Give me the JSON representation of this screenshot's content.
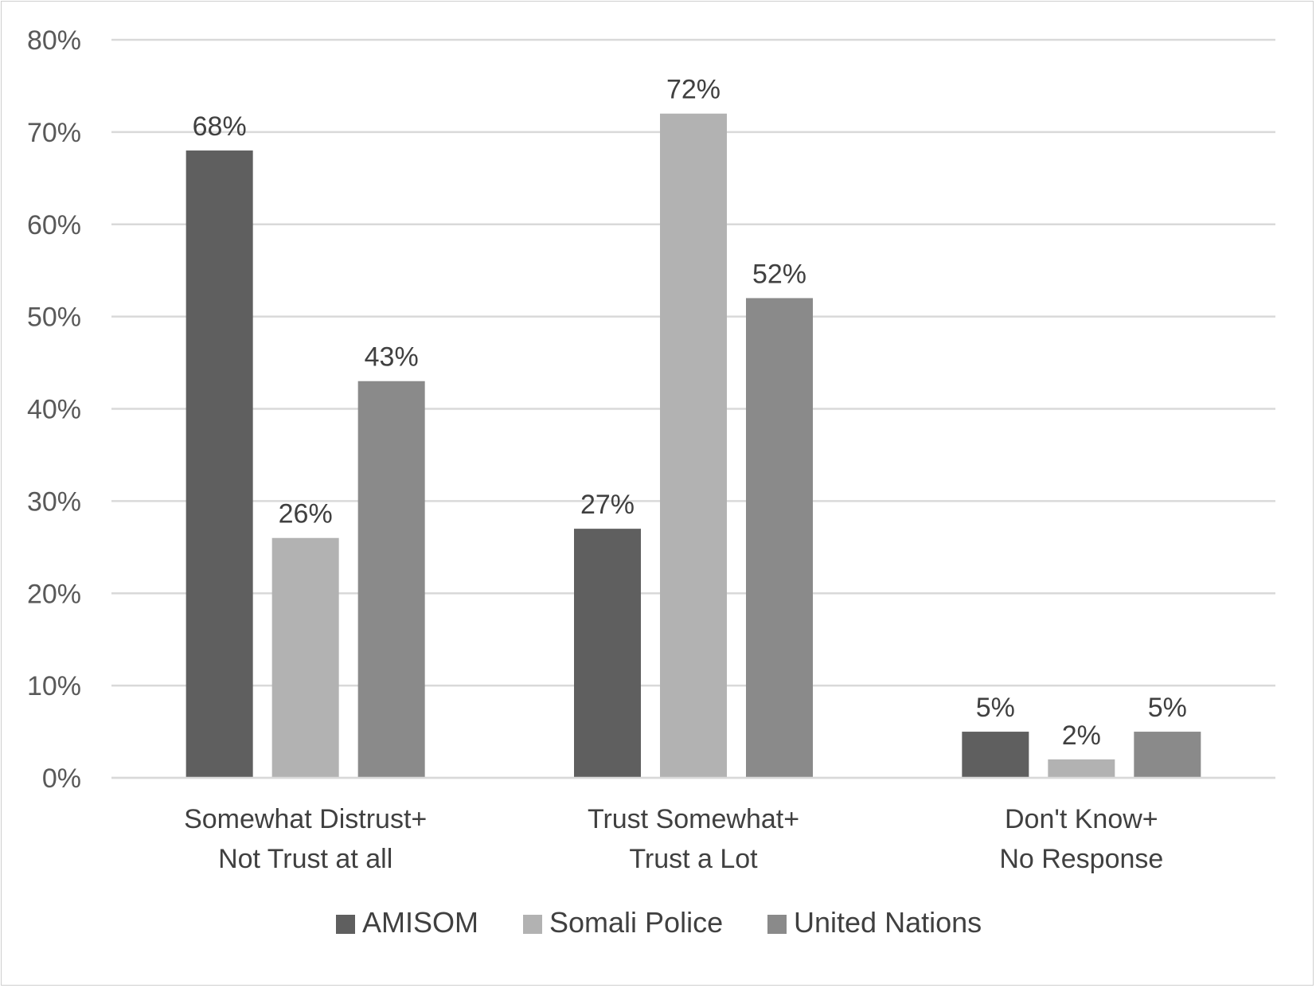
{
  "chart_data": {
    "type": "bar",
    "categories": [
      [
        "Somewhat Distrust+",
        "Not Trust at all"
      ],
      [
        "Trust Somewhat+",
        "Trust a Lot"
      ],
      [
        "Don't Know+",
        "No Response"
      ]
    ],
    "series": [
      {
        "name": "AMISOM",
        "color": "#5f5f5f",
        "values": [
          68,
          27,
          5
        ],
        "labels": [
          "68%",
          "27%",
          "5%"
        ]
      },
      {
        "name": "Somali Police",
        "color": "#b2b2b2",
        "values": [
          26,
          72,
          2
        ],
        "labels": [
          "26%",
          "72%",
          "2%"
        ]
      },
      {
        "name": "United Nations",
        "color": "#8a8a8a",
        "values": [
          43,
          52,
          5
        ],
        "labels": [
          "43%",
          "52%",
          "5%"
        ]
      }
    ],
    "ylim": [
      0,
      80
    ],
    "yticks": [
      0,
      10,
      20,
      30,
      40,
      50,
      60,
      70,
      80
    ],
    "ytick_labels": [
      "0%",
      "10%",
      "20%",
      "30%",
      "40%",
      "50%",
      "60%",
      "70%",
      "80%"
    ],
    "grid": true,
    "legend_position": "bottom"
  }
}
